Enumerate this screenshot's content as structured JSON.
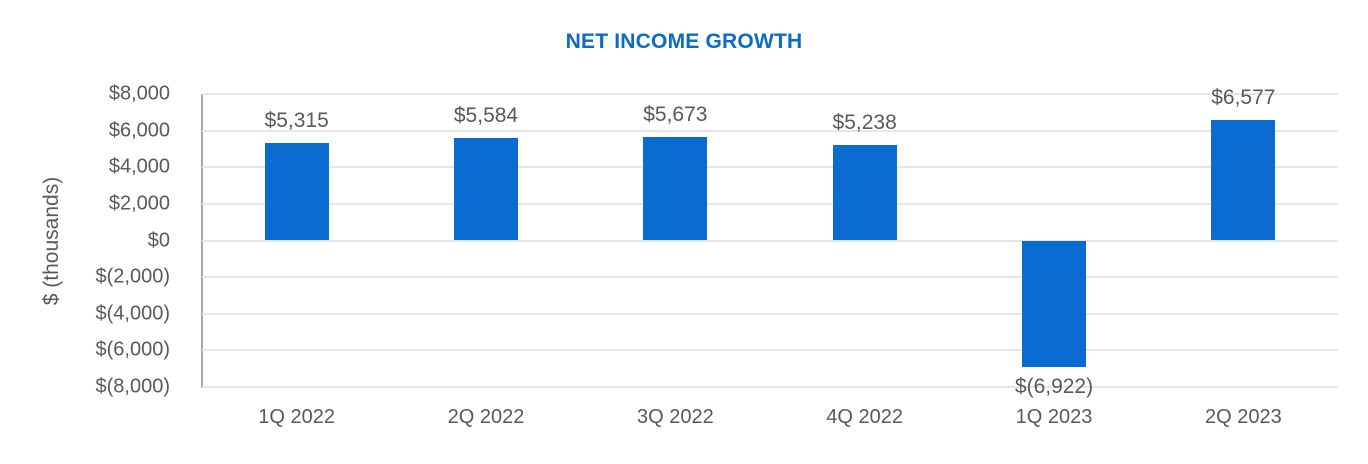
{
  "chart_data": {
    "type": "bar",
    "title": "NET INCOME GROWTH",
    "xlabel": "",
    "ylabel": "$ (thousands)",
    "ylim": [
      -8000,
      8000
    ],
    "yticks": [
      8000,
      6000,
      4000,
      2000,
      0,
      -2000,
      -4000,
      -6000,
      -8000
    ],
    "ytick_labels": [
      "$8,000",
      "$6,000",
      "$4,000",
      "$2,000",
      "$0",
      "$(2,000)",
      "$(4,000)",
      "$(6,000)",
      "$(8,000)"
    ],
    "grid": true,
    "legend": null,
    "categories": [
      "1Q 2022",
      "2Q 2022",
      "3Q 2022",
      "4Q 2022",
      "1Q 2023",
      "2Q 2023"
    ],
    "values": [
      5315,
      5584,
      5673,
      5238,
      -6922,
      6577
    ],
    "data_labels": [
      "$5,315",
      "$5,584",
      "$5,673",
      "$5,238",
      "$(6,922)",
      "$6,577"
    ],
    "bar_color": "#0a6bd0",
    "title_color": "#0a6bc9"
  }
}
